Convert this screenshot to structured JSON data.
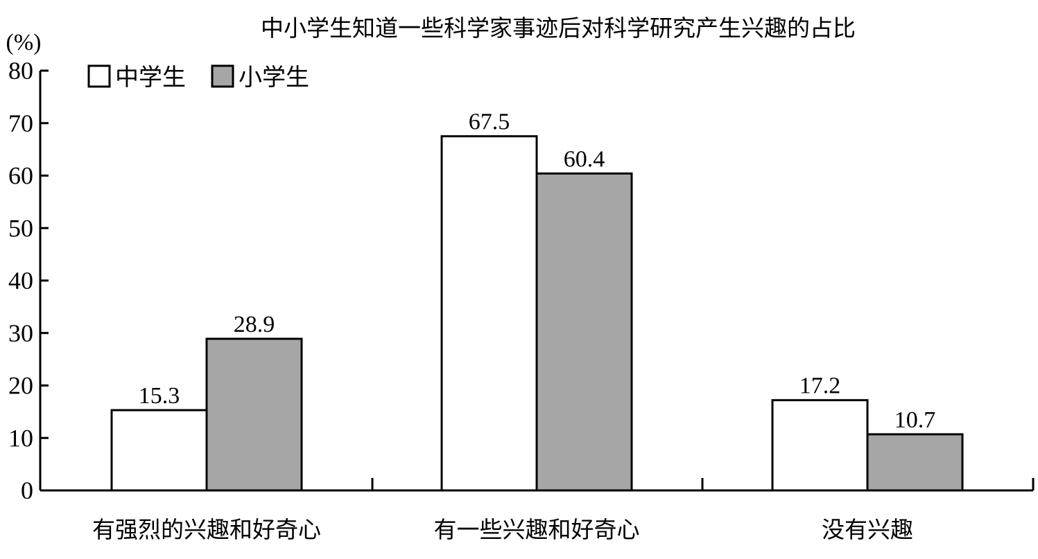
{
  "chart_data": {
    "type": "bar",
    "title": "中小学生知道一些科学家事迹后对科学研究产生兴趣的占比",
    "ylabel": "(%)",
    "xlabel": "",
    "ylim": [
      0,
      80
    ],
    "yticks": [
      "0",
      "10",
      "20",
      "30",
      "40",
      "50",
      "60",
      "70",
      "80"
    ],
    "categories": [
      "有强烈的兴趣和好奇心",
      "有一些兴趣和好奇心",
      "没有兴趣"
    ],
    "series": [
      {
        "name": "中学生",
        "color": "#ffffff",
        "values": [
          15.3,
          67.5,
          17.2
        ],
        "labels": [
          "15.3",
          "67.5",
          "17.2"
        ]
      },
      {
        "name": "小学生",
        "color": "#a6a6a6",
        "values": [
          28.9,
          60.4,
          10.7
        ],
        "labels": [
          "28.9",
          "60.4",
          "10.7"
        ]
      }
    ],
    "legend_position": "top-left",
    "grid": false
  }
}
